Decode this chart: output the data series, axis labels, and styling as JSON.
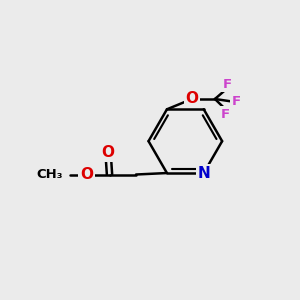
{
  "background_color": "#ebebeb",
  "bond_color": "#000000",
  "atom_colors": {
    "O": "#dd0000",
    "N": "#0000cc",
    "F": "#cc44cc",
    "C": "#000000"
  },
  "figsize": [
    3.0,
    3.0
  ],
  "dpi": 100
}
